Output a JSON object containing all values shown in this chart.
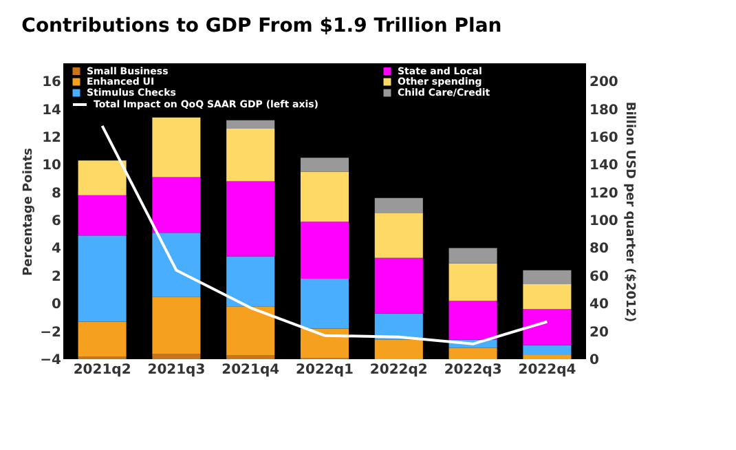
{
  "chart_data": {
    "type": "bar",
    "title": "Contributions to GDP From $1.9 Trillion Plan",
    "ylabel": "Percentage Points",
    "y2label": "Billion USD per quarter ($2012)",
    "categories": [
      "2021q2",
      "2021q3",
      "2021q4",
      "2022q1",
      "2022q2",
      "2022q3",
      "2022q4"
    ],
    "stacked": true,
    "legend": "top left",
    "grid": false,
    "series": [
      {
        "name": "Small Business",
        "color": "#c8751a",
        "axis": "y2",
        "values": [
          2,
          4,
          3,
          1,
          0,
          0,
          0
        ]
      },
      {
        "name": "Enhanced UI",
        "color": "#f5a01f",
        "axis": "y2",
        "values": [
          25,
          41,
          35,
          21,
          14,
          8,
          3
        ]
      },
      {
        "name": "Stimulus Checks",
        "color": "#4aaeff",
        "axis": "y2",
        "values": [
          62,
          46,
          36,
          36,
          19,
          6,
          7
        ]
      },
      {
        "name": "State and Local",
        "color": "#ff00ff",
        "axis": "y2",
        "values": [
          29,
          40,
          54,
          41,
          40,
          28,
          26
        ]
      },
      {
        "name": "Other spending",
        "color": "#ffd966",
        "axis": "y2",
        "values": [
          25,
          43,
          38,
          36,
          32,
          27,
          18
        ]
      },
      {
        "name": "Child Care/Credit",
        "color": "#999999",
        "axis": "y2",
        "values": [
          0,
          0,
          6,
          10,
          11,
          11,
          10
        ]
      },
      {
        "name": "Total Impact on QoQ SAAR GDP (left axis)",
        "type": "line",
        "color": "#ffffff",
        "values": [
          12.8,
          2.4,
          -0.3,
          -2.3,
          -2.4,
          -2.9,
          -1.3
        ]
      }
    ],
    "ylim": [
      -4,
      17.3
    ],
    "yticks": [
      -4,
      -2,
      0,
      2,
      4,
      6,
      8,
      10,
      12,
      14,
      16
    ],
    "y2lim": [
      0,
      213
    ],
    "y2ticks": [
      0,
      20,
      40,
      60,
      80,
      100,
      120,
      140,
      160,
      180,
      200
    ]
  }
}
